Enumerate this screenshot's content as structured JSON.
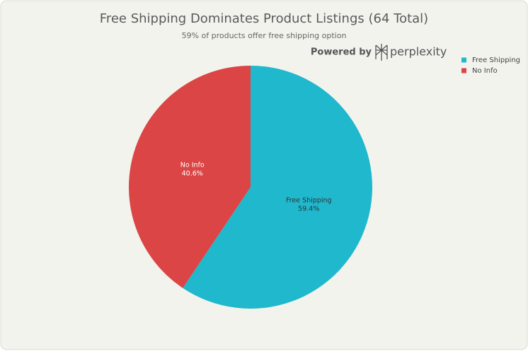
{
  "chart_data": {
    "type": "pie",
    "title": "Free Shipping Dominates Product Listings (64 Total)",
    "subtitle": "59% of products offer free shipping option",
    "watermark": {
      "prefix": "Powered by",
      "brand": "perplexity"
    },
    "categories": [
      "Free Shipping",
      "No Info"
    ],
    "values": [
      59.4,
      40.6
    ],
    "value_labels": [
      "59.4%",
      "40.6%"
    ],
    "colors": [
      "#1fb8cd",
      "#db4545"
    ],
    "legend": "top-right"
  }
}
